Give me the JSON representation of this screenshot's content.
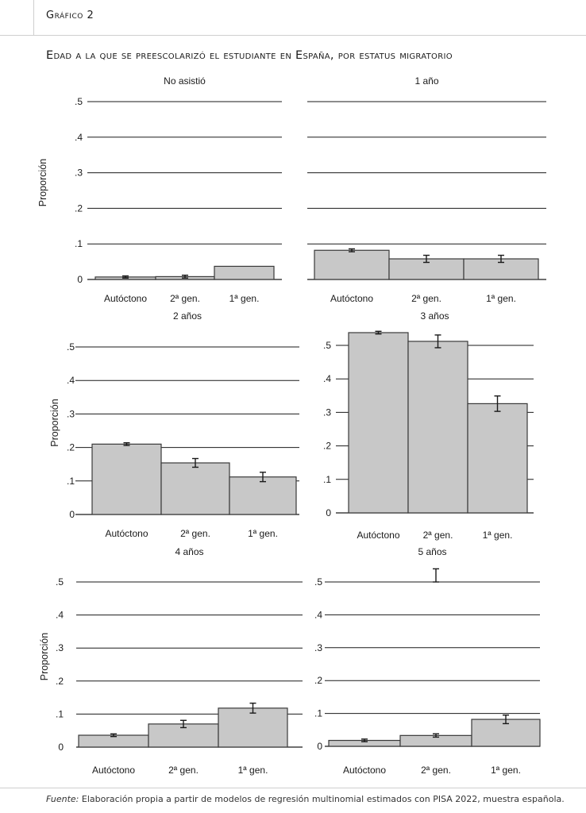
{
  "header": {
    "figure_label": "Gráfico 2",
    "title": "Edad a la que se preescolarizó el estudiante en España, por estatus migratorio"
  },
  "footer": {
    "source_label": "Fuente:",
    "source_text": " Elaboración propia a partir de modelos de regresión multinomial estimados con PISA 2022, muestra española."
  },
  "chart_data": [
    {
      "type": "bar",
      "title": "No asistió",
      "ylabel": "Proporción",
      "categories": [
        "Autóctono",
        "2ª gen.",
        "1ª gen."
      ],
      "values": [
        0.007,
        0.008,
        0.037
      ],
      "errors": [
        0.003,
        0.004,
        null
      ],
      "ylim": [
        0,
        0.5
      ],
      "yticks": [
        0,
        0.1,
        0.2,
        0.3,
        0.4,
        0.5
      ],
      "ytick_labels": [
        "0",
        ".1",
        ".2",
        ".3",
        ".4",
        ".5"
      ],
      "grid": true
    },
    {
      "type": "bar",
      "title": "1 año",
      "ylabel": "",
      "categories": [
        "Autóctono",
        "2ª gen.",
        "1ª gen."
      ],
      "values": [
        0.082,
        0.058,
        0.058
      ],
      "errors": [
        0.004,
        0.01,
        0.01
      ],
      "ylim": [
        0,
        0.5
      ],
      "yticks": [],
      "ytick_labels": [],
      "grid": true
    },
    {
      "type": "bar",
      "title": "2 años",
      "ylabel": "Proporción",
      "categories": [
        "Autóctono",
        "2ª gen.",
        "1ª gen."
      ],
      "values": [
        0.21,
        0.154,
        0.112
      ],
      "errors": [
        0.004,
        0.013,
        0.014
      ],
      "ylim": [
        0,
        0.5
      ],
      "yticks": [
        0,
        0.1,
        0.2,
        0.3,
        0.4,
        0.5
      ],
      "ytick_labels": [
        "0",
        ".1",
        ".2",
        ".3",
        ".4",
        ".5"
      ],
      "grid": true
    },
    {
      "type": "bar",
      "title": "3 años",
      "ylabel": "",
      "categories": [
        "Autóctono",
        "2ª gen.",
        "1ª gen."
      ],
      "values": [
        0.538,
        0.512,
        0.326
      ],
      "errors": [
        0.004,
        0.019,
        0.023
      ],
      "ylim": [
        0,
        0.5
      ],
      "yticks": [
        0,
        0.1,
        0.2,
        0.3,
        0.4,
        0.5
      ],
      "ytick_labels": [
        "0",
        ".1",
        ".2",
        ".3",
        ".4",
        ".5"
      ],
      "grid": true
    },
    {
      "type": "bar",
      "title": "4 años",
      "ylabel": "Proporción",
      "categories": [
        "Autóctono",
        "2ª gen.",
        "1ª gen."
      ],
      "values": [
        0.036,
        0.07,
        0.118
      ],
      "errors": [
        0.004,
        0.011,
        0.015
      ],
      "ylim": [
        0,
        0.5
      ],
      "yticks": [
        0,
        0.1,
        0.2,
        0.3,
        0.4,
        0.5
      ],
      "ytick_labels": [
        "0",
        ".1",
        ".2",
        ".3",
        ".4",
        ".5"
      ],
      "grid": true
    },
    {
      "type": "bar",
      "title": "5 años",
      "ylabel": "",
      "categories": [
        "Autóctono",
        "2ª gen.",
        "1ª gen."
      ],
      "values": [
        0.018,
        0.033,
        0.082
      ],
      "errors": [
        0.004,
        0.005,
        0.013
      ],
      "ylim": [
        0,
        0.5
      ],
      "yticks": [
        0,
        0.1,
        0.2,
        0.3,
        0.4,
        0.5
      ],
      "ytick_labels": [
        "0",
        ".1",
        ".2",
        ".3",
        ".4",
        ".5"
      ],
      "grid": true,
      "extra_errorbars": [
        {
          "x_category": "2ª gen.",
          "center": 0.52,
          "error": 0.02
        }
      ]
    }
  ]
}
